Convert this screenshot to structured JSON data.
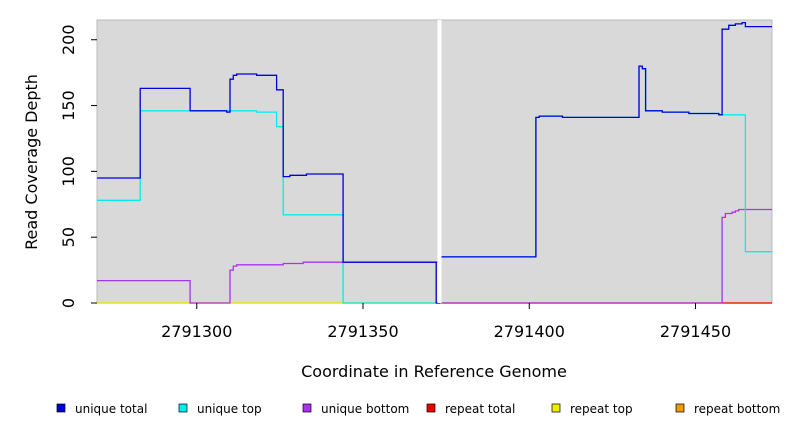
{
  "chart_data": {
    "type": "line",
    "style": "step",
    "xlabel": "Coordinate in Reference Genome",
    "ylabel": "Read Coverage Depth",
    "xlim": [
      2791270,
      2791473
    ],
    "ylim": [
      0,
      215
    ],
    "x_ticks": [
      2791300,
      2791350,
      2791400,
      2791450
    ],
    "x_tick_labels": [
      "2791300",
      "2791350",
      "2791400",
      "2791450"
    ],
    "y_ticks": [
      0,
      50,
      100,
      150,
      200
    ],
    "y_tick_labels": [
      "0",
      "50",
      "100",
      "150",
      "200"
    ],
    "gap_x": 2791373,
    "grid": false,
    "legend_position": "bottom",
    "background_color": "#d9d9d9",
    "series": [
      {
        "name": "unique total",
        "color": "#0000dd",
        "x": [
          2791270,
          2791283,
          2791283,
          2791298,
          2791298,
          2791309,
          2791309,
          2791310,
          2791310,
          2791311,
          2791311,
          2791312,
          2791312,
          2791318,
          2791318,
          2791324,
          2791324,
          2791326,
          2791326,
          2791328,
          2791328,
          2791333,
          2791333,
          2791344,
          2791344,
          2791372,
          2791372,
          2791373,
          2791373,
          2791374,
          2791374,
          2791402,
          2791402,
          2791403,
          2791403,
          2791410,
          2791410,
          2791433,
          2791433,
          2791434,
          2791434,
          2791435,
          2791435,
          2791437,
          2791437,
          2791440,
          2791440,
          2791448,
          2791448,
          2791457,
          2791457,
          2791458,
          2791458,
          2791460,
          2791460,
          2791462,
          2791462,
          2791464,
          2791464,
          2791465,
          2791465,
          2791473
        ],
        "y": [
          95,
          95,
          163,
          163,
          146,
          146,
          145,
          145,
          170,
          170,
          173,
          173,
          174,
          174,
          173,
          173,
          162,
          162,
          96,
          96,
          97,
          97,
          98,
          98,
          31,
          31,
          0,
          0,
          35,
          35,
          35,
          35,
          141,
          141,
          142,
          142,
          141,
          141,
          180,
          180,
          178,
          178,
          146,
          146,
          146,
          146,
          145,
          145,
          144,
          144,
          143,
          143,
          208,
          208,
          211,
          211,
          212,
          212,
          213,
          213,
          210,
          210
        ]
      },
      {
        "name": "unique top",
        "color": "#00eeee",
        "x": [
          2791270,
          2791283,
          2791283,
          2791298,
          2791298,
          2791318,
          2791318,
          2791324,
          2791324,
          2791326,
          2791326,
          2791344,
          2791344,
          2791372,
          2791372,
          2791373,
          2791373,
          2791374,
          2791374,
          2791402,
          2791402,
          2791403,
          2791403,
          2791410,
          2791410,
          2791433,
          2791433,
          2791434,
          2791434,
          2791435,
          2791435,
          2791440,
          2791440,
          2791448,
          2791448,
          2791457,
          2791457,
          2791465,
          2791465,
          2791473
        ],
        "y": [
          78,
          78,
          146,
          146,
          146,
          146,
          145,
          145,
          134,
          134,
          67,
          67,
          0,
          0,
          0,
          0,
          35,
          35,
          35,
          35,
          141,
          141,
          142,
          142,
          141,
          141,
          180,
          180,
          178,
          178,
          146,
          146,
          145,
          145,
          144,
          144,
          143,
          143,
          39,
          39
        ]
      },
      {
        "name": "unique bottom",
        "color": "#aa33ee",
        "x": [
          2791270,
          2791298,
          2791298,
          2791310,
          2791310,
          2791311,
          2791311,
          2791312,
          2791312,
          2791326,
          2791326,
          2791332,
          2791332,
          2791373,
          2791373,
          2791458,
          2791458,
          2791459,
          2791459,
          2791461,
          2791461,
          2791462,
          2791462,
          2791463,
          2791463,
          2791473
        ],
        "y": [
          17,
          17,
          0,
          0,
          25,
          25,
          28,
          28,
          29,
          29,
          30,
          30,
          31,
          31,
          0,
          0,
          65,
          65,
          68,
          68,
          69,
          69,
          70,
          70,
          71,
          71
        ]
      },
      {
        "name": "repeat total",
        "color": "#ee0000",
        "x": [
          2791374,
          2791473
        ],
        "y": [
          0,
          0
        ]
      },
      {
        "name": "repeat top",
        "color": "#eeee00",
        "x": [
          2791270,
          2791473
        ],
        "y": [
          0,
          0
        ]
      },
      {
        "name": "repeat bottom",
        "color": "#ee9900",
        "x": [
          2791270,
          2791373
        ],
        "y": [
          0,
          0
        ]
      }
    ]
  }
}
